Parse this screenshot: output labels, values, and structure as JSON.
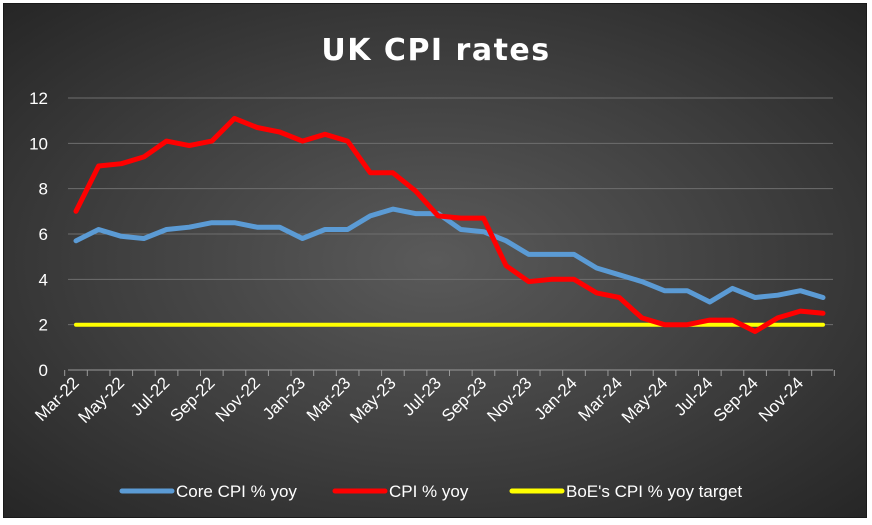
{
  "chart_data": {
    "type": "line",
    "title": "UK CPI rates",
    "xlabel": "",
    "ylabel": "",
    "ylim": [
      0,
      12
    ],
    "yticks": [
      "0",
      "2",
      "4",
      "6",
      "8",
      "10",
      "12"
    ],
    "grid": true,
    "legend_position": "bottom",
    "x": [
      "Mar-22",
      "Apr-22",
      "May-22",
      "Jun-22",
      "Jul-22",
      "Aug-22",
      "Sep-22",
      "Oct-22",
      "Nov-22",
      "Dec-22",
      "Jan-23",
      "Feb-23",
      "Mar-23",
      "Apr-23",
      "May-23",
      "Jun-23",
      "Jul-23",
      "Aug-23",
      "Sep-23",
      "Oct-23",
      "Nov-23",
      "Dec-23",
      "Jan-24",
      "Feb-24",
      "Mar-24",
      "Apr-24",
      "May-24",
      "Jun-24",
      "Jul-24",
      "Aug-24",
      "Sep-24",
      "Oct-24",
      "Nov-24",
      "Dec-24"
    ],
    "xtick_labels": [
      "Mar-22",
      "May-22",
      "Jul-22",
      "Sep-22",
      "Nov-22",
      "Jan-23",
      "Mar-23",
      "May-23",
      "Jul-23",
      "Sep-23",
      "Nov-23",
      "Jan-24",
      "Mar-24",
      "May-24",
      "Jul-24",
      "Sep-24",
      "Nov-24"
    ],
    "series": [
      {
        "name": "Core CPI % yoy",
        "color": "#5b9bd5",
        "values": [
          5.7,
          6.2,
          5.9,
          5.8,
          6.2,
          6.3,
          6.5,
          6.5,
          6.3,
          6.3,
          5.8,
          6.2,
          6.2,
          6.8,
          7.1,
          6.9,
          6.9,
          6.2,
          6.1,
          5.7,
          5.1,
          5.1,
          5.1,
          4.5,
          4.2,
          3.9,
          3.5,
          3.5,
          3.0,
          3.6,
          3.2,
          3.3,
          3.5,
          3.2
        ]
      },
      {
        "name": "CPI % yoy",
        "color": "#ff0000",
        "values": [
          7.0,
          9.0,
          9.1,
          9.4,
          10.1,
          9.9,
          10.1,
          11.1,
          10.7,
          10.5,
          10.1,
          10.4,
          10.1,
          8.7,
          8.7,
          7.9,
          6.8,
          6.7,
          6.7,
          4.6,
          3.9,
          4.0,
          4.0,
          3.4,
          3.2,
          2.3,
          2.0,
          2.0,
          2.2,
          2.2,
          1.7,
          2.3,
          2.6,
          2.5
        ]
      },
      {
        "name": "BoE's CPI % yoy target",
        "color": "#ffff00",
        "values": [
          2,
          2,
          2,
          2,
          2,
          2,
          2,
          2,
          2,
          2,
          2,
          2,
          2,
          2,
          2,
          2,
          2,
          2,
          2,
          2,
          2,
          2,
          2,
          2,
          2,
          2,
          2,
          2,
          2,
          2,
          2,
          2,
          2,
          2
        ]
      }
    ]
  }
}
